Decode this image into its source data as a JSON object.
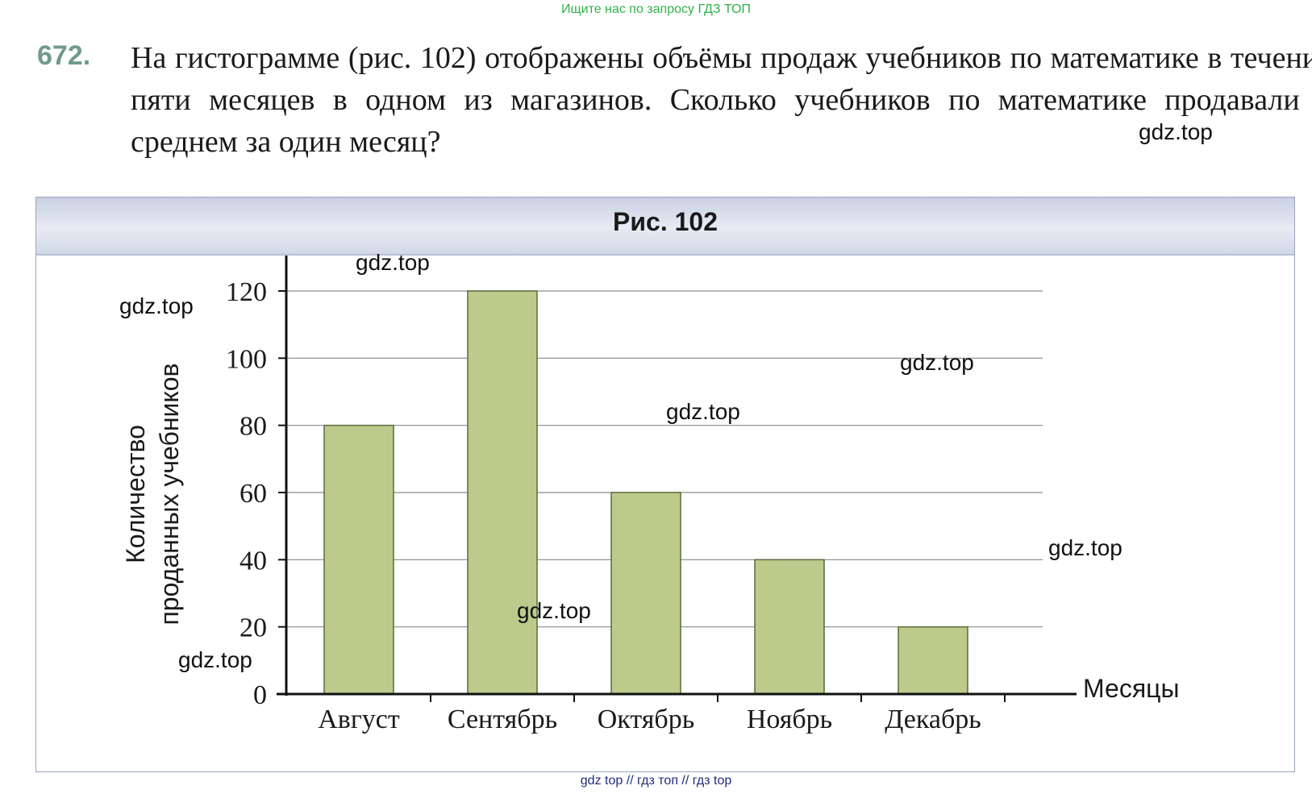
{
  "banner": {
    "top": "Ищите нас по запросу ГДЗ ТОП",
    "bottom": "gdz top  //  гдз топ  //  гдз top"
  },
  "problem": {
    "number": "672.",
    "text": "На гистограмме (рис. 102) отображены объёмы продаж учебников по математике в течение пяти месяцев в одном из магазинов. Сколько учебников по математике продавали в среднем за один месяц?"
  },
  "figure": {
    "title": "Рис. 102"
  },
  "watermarks": [
    "gdz.top",
    "gdz.top",
    "gdz.top",
    "gdz.top",
    "gdz.top",
    "gdz.top",
    "gdz.top",
    "gdz.top"
  ],
  "chart_data": {
    "type": "bar",
    "title": "Рис. 102",
    "categories": [
      "Август",
      "Сентябрь",
      "Октябрь",
      "Ноябрь",
      "Декабрь"
    ],
    "values": [
      80,
      120,
      60,
      40,
      20
    ],
    "xlabel": "Месяцы",
    "ylabel_lines": [
      "Количество",
      "проданных учебников"
    ],
    "ylim": [
      0,
      120
    ],
    "yticks": [
      0,
      20,
      40,
      60,
      80,
      100,
      120
    ],
    "grid": true,
    "bar_color": "#bccb8c",
    "bar_edge_color": "#5b6a3a",
    "legend": "none"
  }
}
